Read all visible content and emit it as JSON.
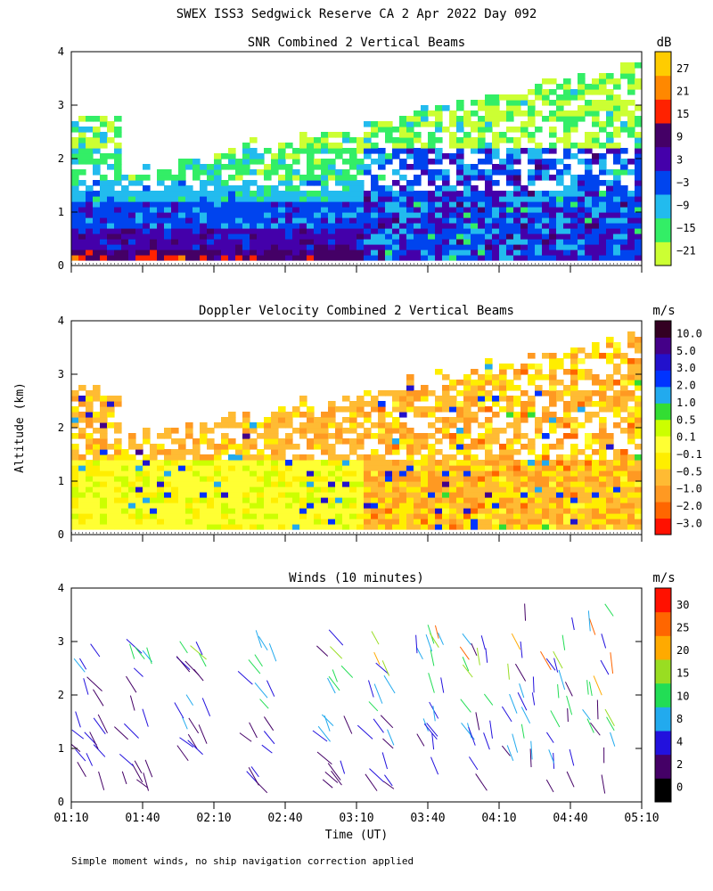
{
  "title": "SWEX ISS3 Sedgwick Reserve CA   2 Apr 2022 Day 092",
  "footnote": "Simple moment winds, no ship navigation correction applied",
  "colors": {
    "snr": [
      "#ccff33",
      "#33ee66",
      "#22bbee",
      "#0044ee",
      "#4400aa",
      "#440066",
      "#ff2200",
      "#ff8800",
      "#ffcc00"
    ],
    "vel": [
      "#ff1100",
      "#ff6600",
      "#ff9922",
      "#ffbb33",
      "#ffee00",
      "#ffff33",
      "#ccff00",
      "#33dd33",
      "#22aaee",
      "#0033ff",
      "#2211cc",
      "#440088",
      "#330022"
    ],
    "wind": [
      "#000000",
      "#440066",
      "#2211dd",
      "#22aaee",
      "#22dd55",
      "#99dd22",
      "#ffaa00",
      "#ff6600",
      "#ff1100"
    ]
  },
  "chart_data": [
    {
      "type": "heatmap",
      "title": "SNR Combined 2 Vertical Beams",
      "ylabel": "",
      "xlabel": "",
      "unit": "dB",
      "x_range": [
        "01:10",
        "05:10"
      ],
      "ylim": [
        0,
        4
      ],
      "yticks": [
        "0",
        "1",
        "2",
        "3",
        "4"
      ],
      "colorbar_ticks": [
        "27",
        "21",
        "15",
        "9",
        "3",
        "−3",
        "−9",
        "−15",
        "−21"
      ],
      "colorbar_levels": 9
    },
    {
      "type": "heatmap",
      "title": "Doppler Velocity Combined 2 Vertical Beams",
      "ylabel": "Altitude (km)",
      "xlabel": "",
      "unit": "m/s",
      "x_range": [
        "01:10",
        "05:10"
      ],
      "ylim": [
        0,
        4
      ],
      "yticks": [
        "0",
        "1",
        "2",
        "3",
        "4"
      ],
      "colorbar_ticks": [
        "10.0",
        "5.0",
        "3.0",
        "2.0",
        "1.0",
        "0.5",
        "0.1",
        "−0.1",
        "−0.5",
        "−1.0",
        "−2.0",
        "−3.0"
      ],
      "colorbar_levels": 13
    },
    {
      "type": "scatter",
      "title": "Winds (10 minutes)",
      "ylabel": "",
      "xlabel": "Time (UT)",
      "unit": "m/s",
      "x_range": [
        "01:10",
        "05:10"
      ],
      "ylim": [
        0,
        4
      ],
      "yticks": [
        "0",
        "1",
        "2",
        "3",
        "4"
      ],
      "xticks": [
        "01:10",
        "01:40",
        "02:10",
        "02:40",
        "03:10",
        "03:40",
        "04:10",
        "04:40",
        "05:10"
      ],
      "colorbar_ticks": [
        "30",
        "25",
        "20",
        "15",
        "10",
        "8",
        "4",
        "2",
        "0"
      ],
      "colorbar_levels": 9
    }
  ]
}
